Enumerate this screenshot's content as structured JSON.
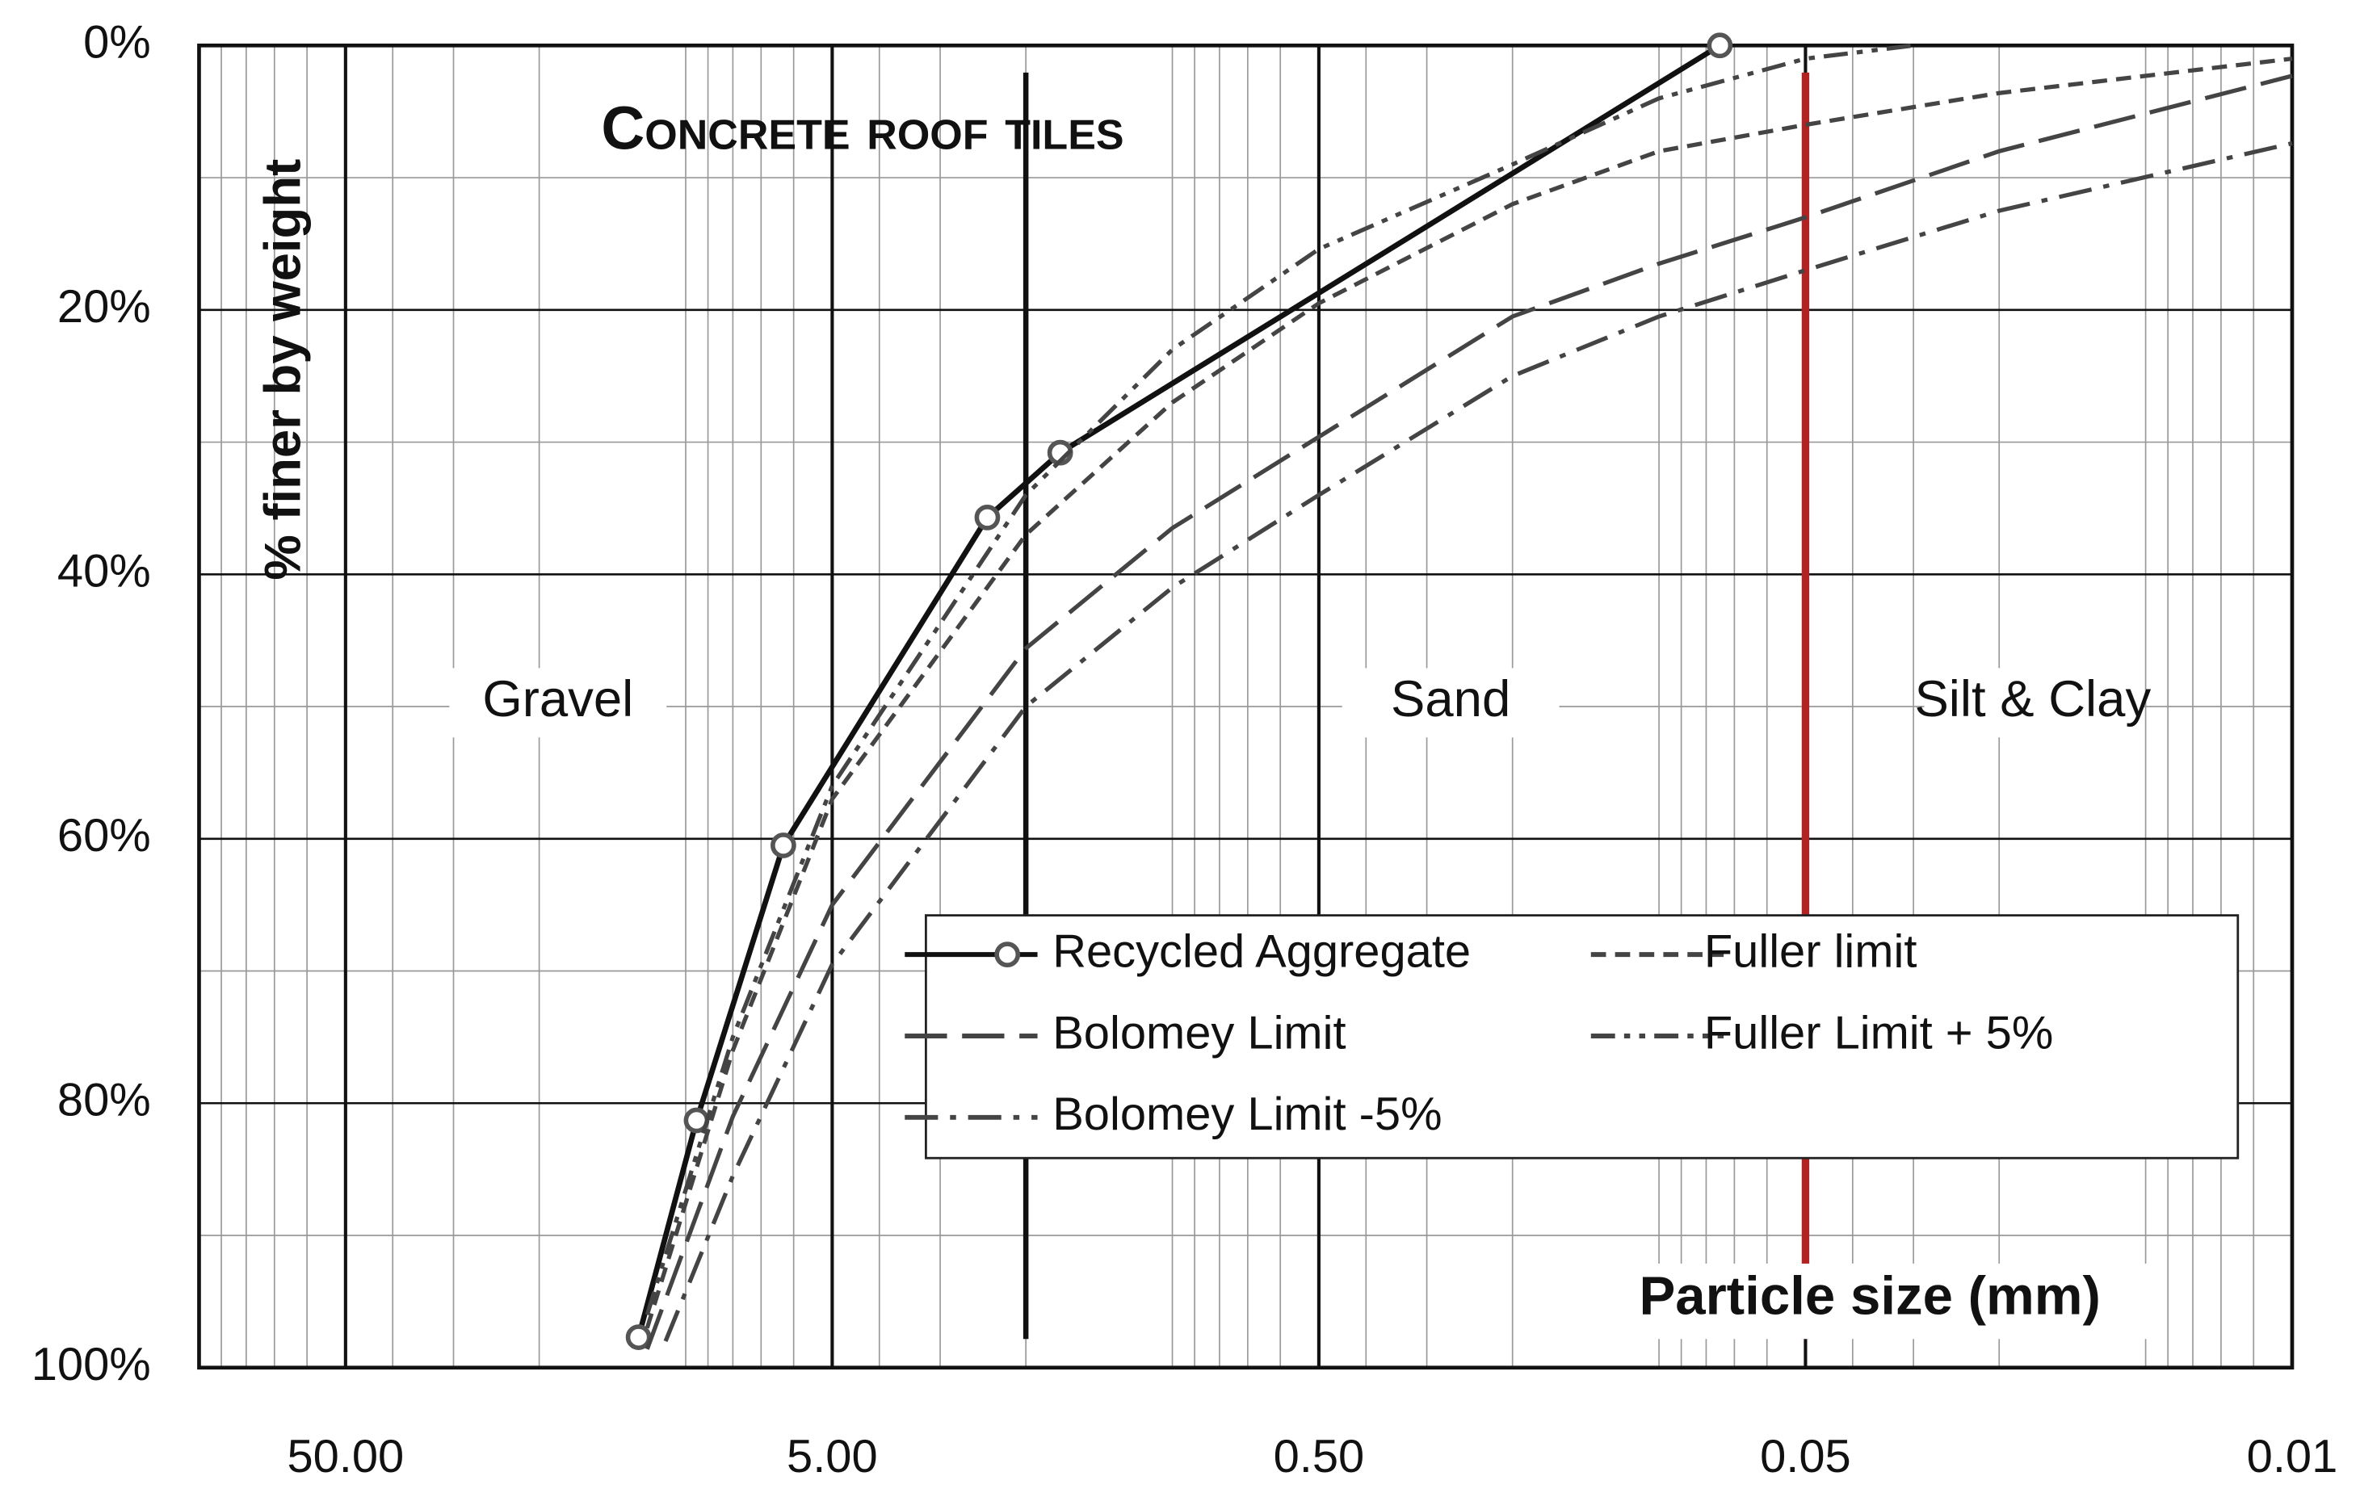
{
  "chart_data": {
    "type": "line",
    "title": "Concrete roof tiles",
    "ylabel": "% finer by weight",
    "xlabel": "Particle size (mm)",
    "xscale": "log",
    "xlim": [
      100,
      0.005
    ],
    "xticks": [
      {
        "value": 50,
        "label": "50.00"
      },
      {
        "value": 5,
        "label": "5.00"
      },
      {
        "value": 0.5,
        "label": "0.50"
      },
      {
        "value": 0.05,
        "label": "0.05"
      },
      {
        "value": 0.005,
        "label": "0.01"
      }
    ],
    "ylim": [
      0,
      100
    ],
    "yticks": [
      {
        "value": 0,
        "label": "0%"
      },
      {
        "value": 20,
        "label": "20%"
      },
      {
        "value": 40,
        "label": "40%"
      },
      {
        "value": 60,
        "label": "60%"
      },
      {
        "value": 80,
        "label": "80%"
      },
      {
        "value": 100,
        "label": "100%"
      }
    ],
    "grid": true,
    "zones": [
      "Gravel",
      "Sand",
      "Silt & Clay"
    ],
    "zone_boundaries": [
      {
        "value": 2,
        "color": "#111111"
      },
      {
        "value": 0.05,
        "color": "#b22222"
      }
    ],
    "series": [
      {
        "name": "Recycled Aggregate",
        "color": "#111111",
        "dash": "solid",
        "marker": "circle",
        "x": [
          12.5,
          9.5,
          6.3,
          2.4,
          1.7,
          0.075
        ],
        "values": [
          97.7,
          81.3,
          60.5,
          35.7,
          30.8,
          0
        ]
      },
      {
        "name": "Fuller limit",
        "color": "#444444",
        "dash": "short",
        "x": [
          12,
          8,
          5,
          2,
          1,
          0.5,
          0.2,
          0.1,
          0.05,
          0.02,
          0.005
        ],
        "values": [
          97,
          76,
          57,
          37,
          27,
          19.5,
          12,
          8,
          6,
          3.6,
          1
        ]
      },
      {
        "name": "Bolomey Limit",
        "color": "#444444",
        "dash": "long",
        "x": [
          12,
          8,
          5,
          2,
          1,
          0.5,
          0.2,
          0.1,
          0.05,
          0.02,
          0.005
        ],
        "values": [
          98.6,
          81,
          65,
          45.6,
          36.5,
          29.6,
          20.5,
          16.5,
          13,
          8,
          2.3
        ]
      },
      {
        "name": "Fuller Limit + 5%",
        "color": "#444444",
        "dash": "dashdotdot",
        "x": [
          12,
          8,
          5,
          2,
          1,
          0.5,
          0.2,
          0.1,
          0.05,
          0.03
        ],
        "values": [
          96,
          75,
          56,
          34,
          23,
          15.4,
          9,
          4,
          1,
          0
        ]
      },
      {
        "name": "Bolomey Limit -5%",
        "color": "#444444",
        "dash": "dashdot",
        "x": [
          11,
          8,
          5,
          2,
          1,
          0.5,
          0.2,
          0.1,
          0.05,
          0.02,
          0.005
        ],
        "values": [
          98,
          85.5,
          69.5,
          50,
          41,
          34,
          25,
          20.5,
          17,
          12.5,
          7.4
        ]
      }
    ]
  }
}
